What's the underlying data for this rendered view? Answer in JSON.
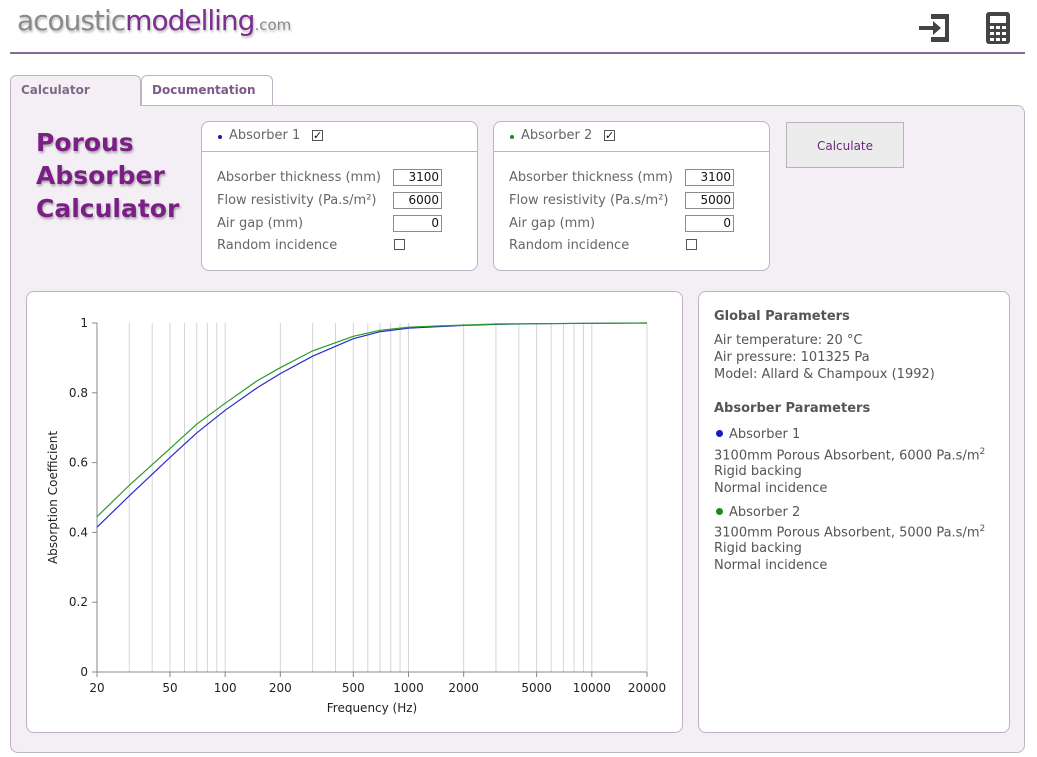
{
  "header": {
    "logo": {
      "part1": "acoustic",
      "part2": "modelling",
      "part3": ".com"
    },
    "icons": [
      "login-icon",
      "calculator-icon"
    ]
  },
  "tabs": [
    {
      "label": "Calculator",
      "active": true
    },
    {
      "label": "Documentation",
      "active": false
    }
  ],
  "page_title": {
    "line1": "Porous",
    "line2": "Absorber",
    "line3": "Calculator"
  },
  "absorber1": {
    "label": "Absorber 1",
    "enabled": true,
    "color": "#1a1ab8",
    "thickness_label": "Absorber thickness (mm)",
    "thickness": "3100",
    "flow_label": "Flow resistivity (Pa.s/m²)",
    "flow": "6000",
    "airgap_label": "Air gap (mm)",
    "airgap": "0",
    "random_label": "Random incidence",
    "random": false
  },
  "absorber2": {
    "label": "Absorber 2",
    "enabled": true,
    "color": "#1a8a1a",
    "thickness_label": "Absorber thickness (mm)",
    "thickness": "3100",
    "flow_label": "Flow resistivity (Pa.s/m²)",
    "flow": "5000",
    "airgap_label": "Air gap (mm)",
    "airgap": "0",
    "random_label": "Random incidence",
    "random": false
  },
  "calculate_label": "Calculate",
  "info": {
    "global_title": "Global Parameters",
    "air_temp": "Air temperature: 20 °C",
    "air_pressure": "Air pressure: 101325 Pa",
    "model": "Model: Allard & Champoux (1992)",
    "absorber_title": "Absorber Parameters",
    "a1_name": "Absorber 1",
    "a1_desc": "3100mm Porous Absorbent, 6000 Pa.s/m",
    "a1_sup": "2",
    "a1_backing": "Rigid backing",
    "a1_incidence": "Normal incidence",
    "a2_name": "Absorber 2",
    "a2_desc": "3100mm Porous Absorbent, 5000 Pa.s/m",
    "a2_sup": "2",
    "a2_backing": "Rigid backing",
    "a2_incidence": "Normal incidence"
  },
  "chart_data": {
    "type": "line",
    "xlabel": "Frequency (Hz)",
    "ylabel": "Absorption Coefficient",
    "xscale": "log",
    "xlim": [
      20,
      20000
    ],
    "ylim": [
      0,
      1
    ],
    "xticks": [
      20,
      50,
      100,
      200,
      500,
      1000,
      2000,
      5000,
      10000,
      20000
    ],
    "xtick_labels": [
      "20",
      "50",
      "100",
      "200",
      "500",
      "1000",
      "2000",
      "5000",
      "10000",
      "20000"
    ],
    "yticks": [
      0,
      0.2,
      0.4,
      0.6,
      0.8,
      1
    ],
    "ytick_labels": [
      "0",
      "0.2",
      "0.4",
      "0.6",
      "0.8",
      "1"
    ],
    "grid": true,
    "x": [
      20,
      30,
      50,
      70,
      100,
      150,
      200,
      300,
      500,
      700,
      1000,
      1500,
      2000,
      3000,
      5000,
      10000,
      20000
    ],
    "series": [
      {
        "name": "Absorber 1",
        "color": "#2a2ad0",
        "values": [
          0.415,
          0.505,
          0.615,
          0.685,
          0.75,
          0.815,
          0.855,
          0.905,
          0.955,
          0.975,
          0.985,
          0.99,
          0.993,
          0.996,
          0.998,
          0.999,
          1.0
        ]
      },
      {
        "name": "Absorber 2",
        "color": "#2a9a2a",
        "values": [
          0.445,
          0.535,
          0.64,
          0.71,
          0.77,
          0.835,
          0.872,
          0.92,
          0.962,
          0.979,
          0.988,
          0.992,
          0.994,
          0.997,
          0.998,
          0.999,
          1.0
        ]
      }
    ]
  }
}
